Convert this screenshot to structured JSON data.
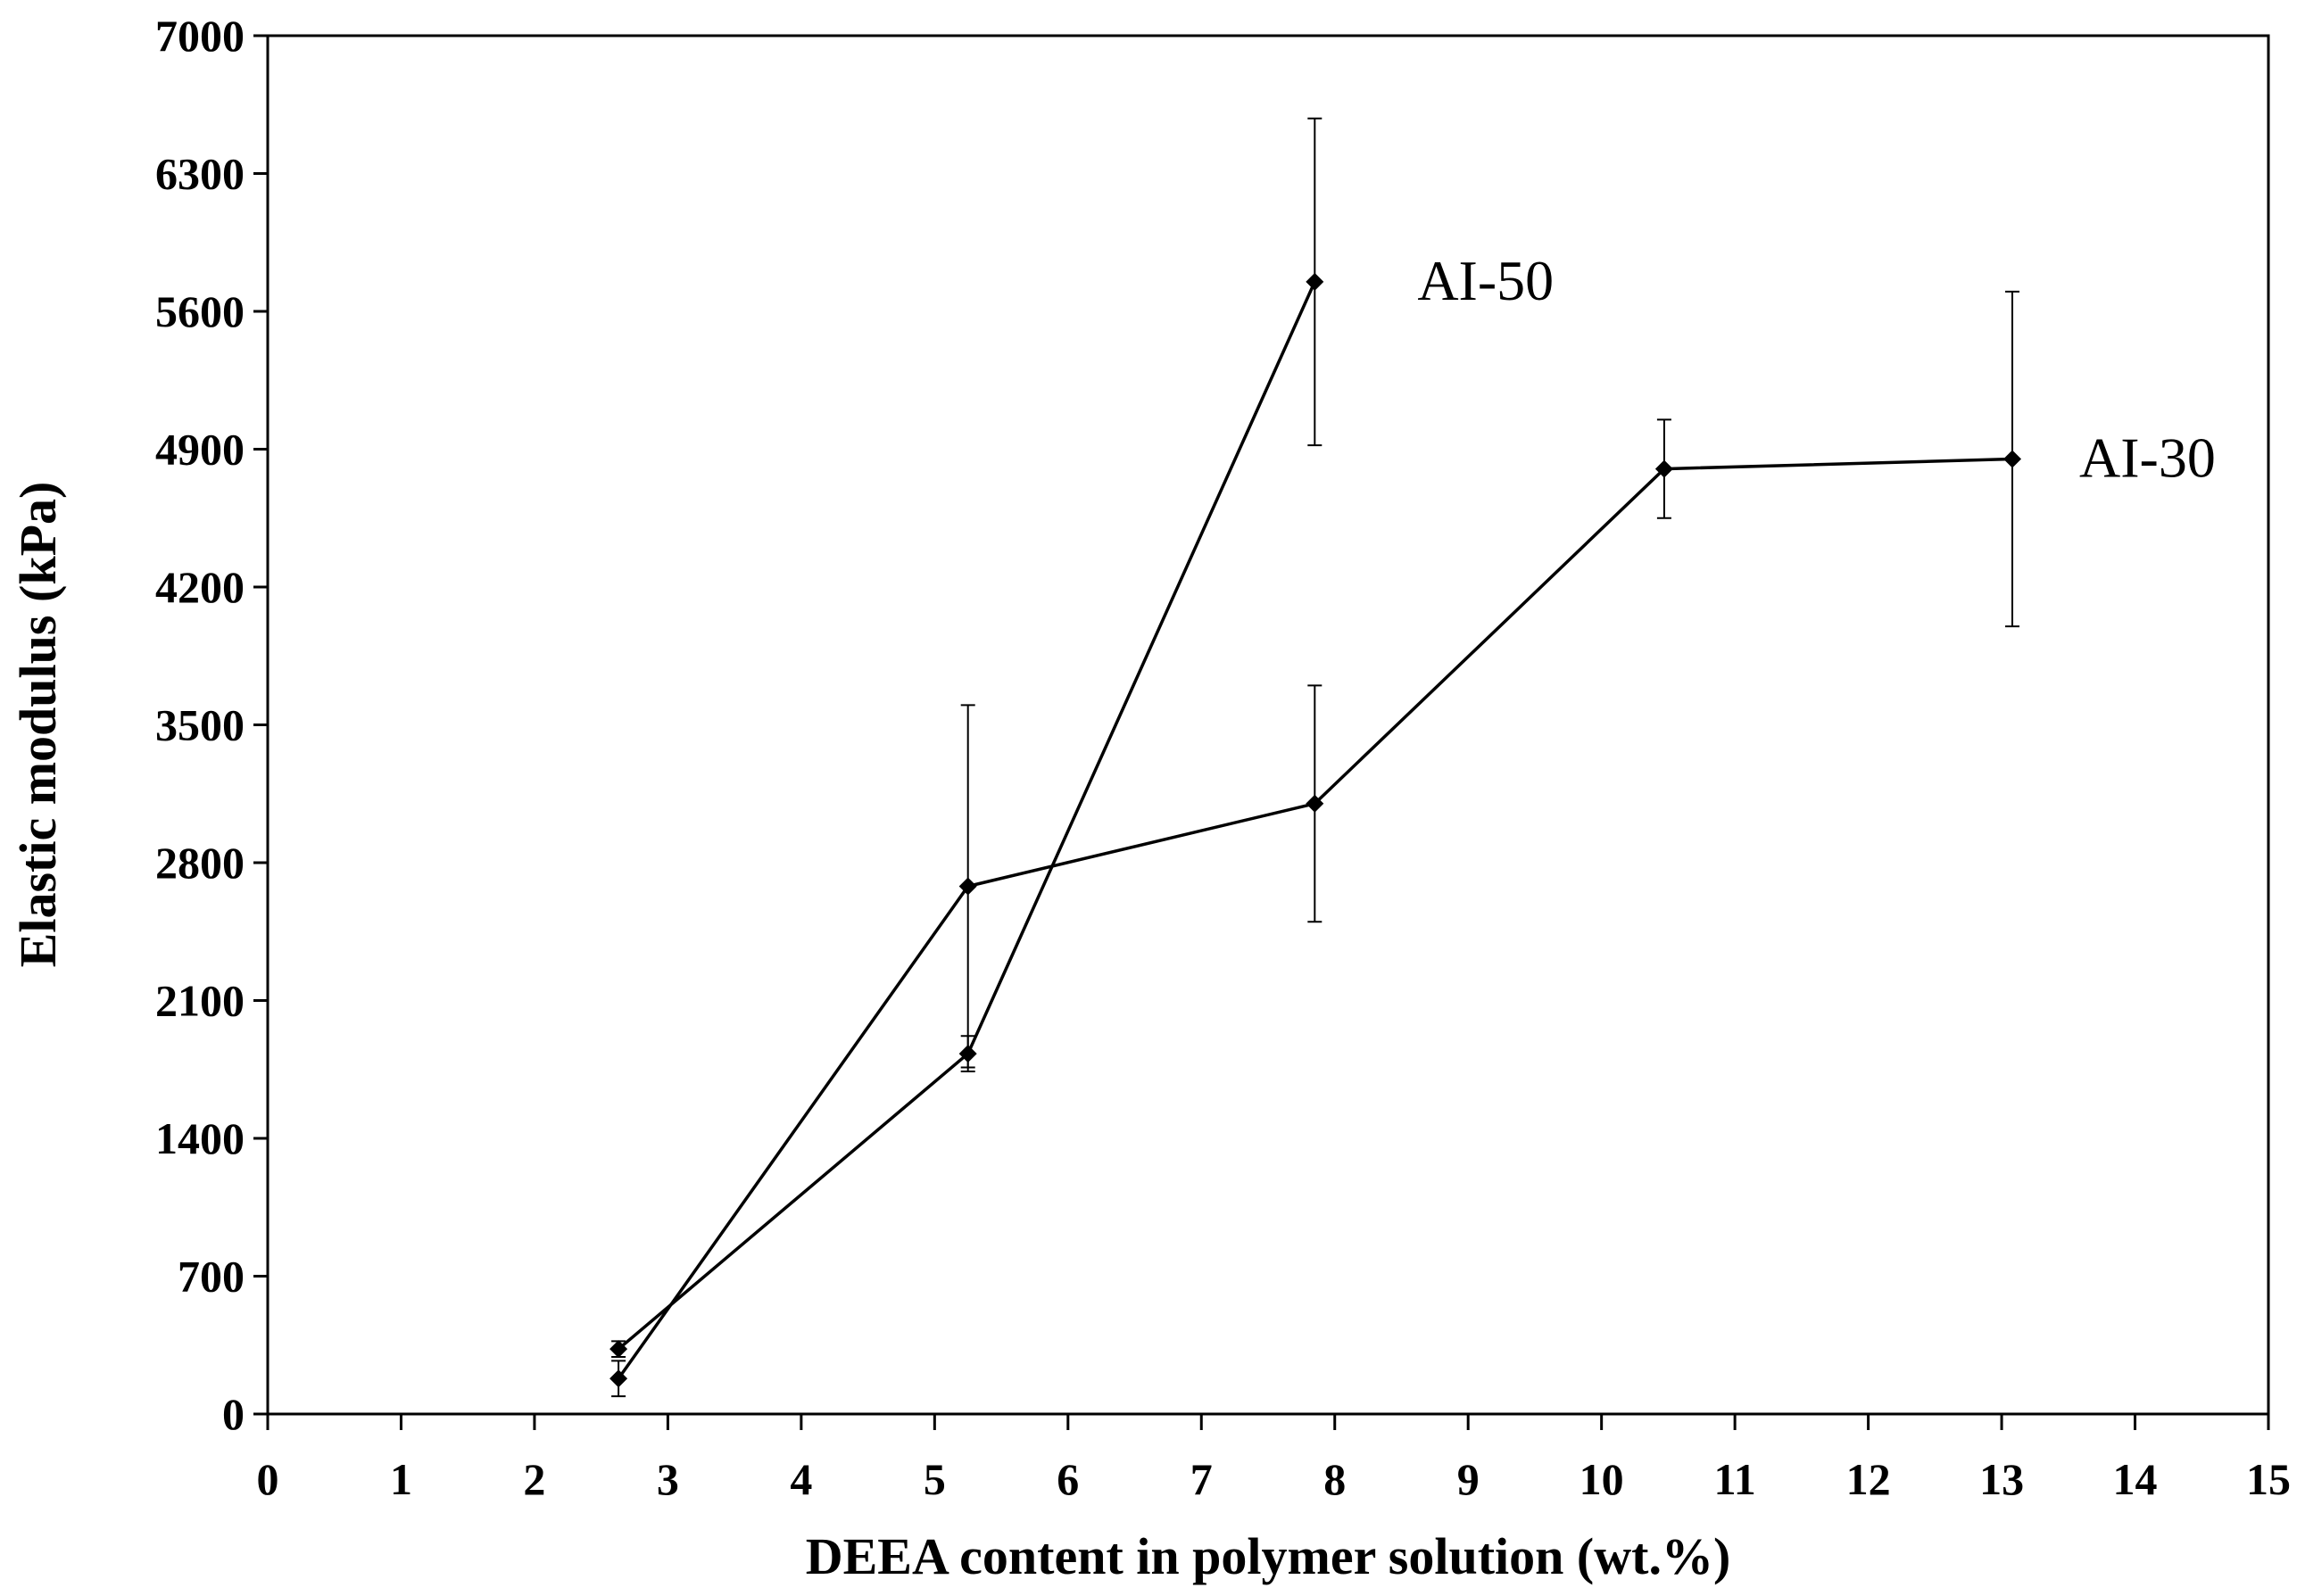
{
  "chart_data": {
    "type": "line",
    "title": "",
    "xlabel": "DEEA content in polymer solution (wt.%)",
    "ylabel": "Elastic modulus  (kPa)",
    "xlim": [
      0,
      15
    ],
    "ylim": [
      0,
      7000
    ],
    "xticks": [
      "0",
      "1",
      "2",
      "3",
      "4",
      "5",
      "6",
      "7",
      "8",
      "9",
      "10",
      "11",
      "12",
      "13",
      "14",
      "15"
    ],
    "yticks": [
      "0",
      "700",
      "1400",
      "2100",
      "2800",
      "3500",
      "4200",
      "4900",
      "5600",
      "6300",
      "7000"
    ],
    "grid": false,
    "legend": "none",
    "line_color": "#000000",
    "series": [
      {
        "name": "AI-50",
        "x": [
          2.63,
          5.25,
          7.85
        ],
        "y": [
          330,
          1830,
          5750
        ],
        "err": [
          40,
          90,
          830
        ]
      },
      {
        "name": "AI-30",
        "x": [
          2.63,
          5.25,
          7.85,
          10.47,
          13.08
        ],
        "y": [
          180,
          2680,
          3100,
          4800,
          4850
        ],
        "err": [
          90,
          920,
          600,
          250,
          850
        ]
      }
    ]
  }
}
